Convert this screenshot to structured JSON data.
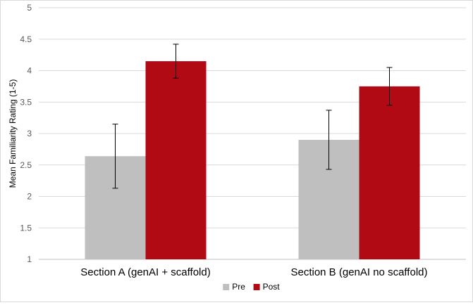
{
  "chart_data": {
    "type": "bar",
    "title": "",
    "xlabel": "",
    "ylabel": "Mean Familiarity Rating (1-5)",
    "ylim": [
      1,
      5
    ],
    "yticks": [
      "1",
      "1.5",
      "2",
      "2.5",
      "3",
      "3.5",
      "4",
      "4.5",
      "5"
    ],
    "grid": true,
    "legend_position": "bottom",
    "categories": [
      "Section A (genAI + scaffold)",
      "Section B (genAI no scaffold)"
    ],
    "series": [
      {
        "name": "Pre",
        "color": "#bfbfbf",
        "values": [
          2.64,
          2.9
        ],
        "error": [
          0.51,
          0.47
        ]
      },
      {
        "name": "Post",
        "color": "#b20a14",
        "values": [
          4.15,
          3.75
        ],
        "error": [
          0.27,
          0.3
        ]
      }
    ]
  }
}
